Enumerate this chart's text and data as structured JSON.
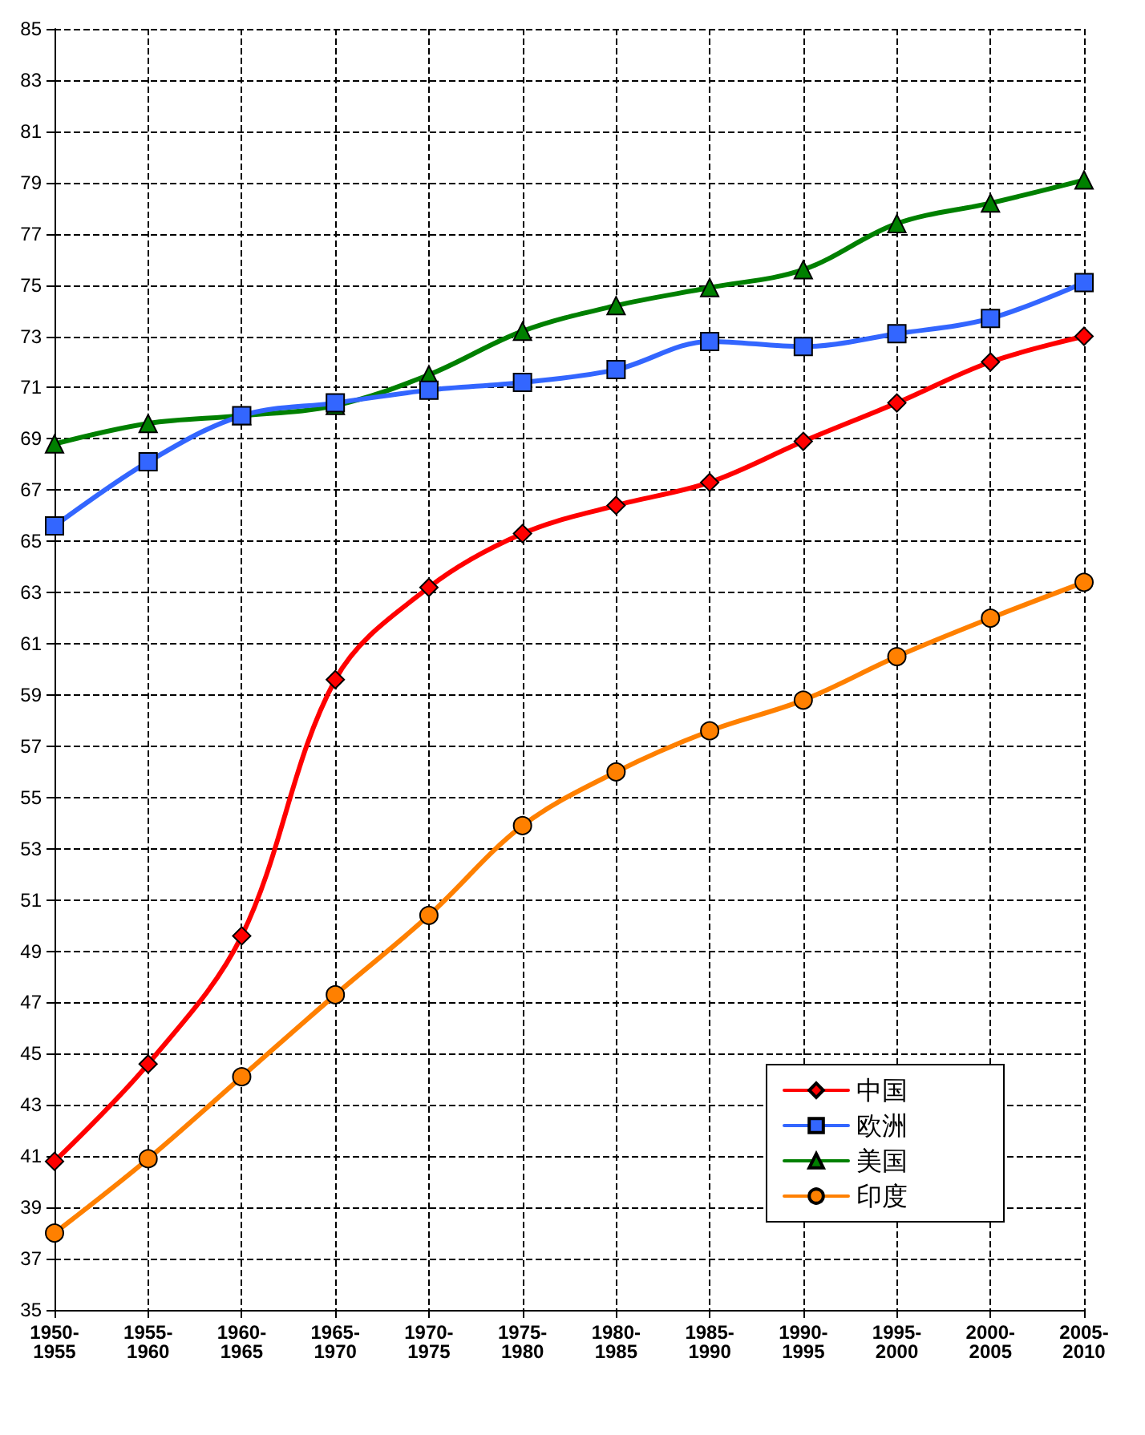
{
  "chart_data": {
    "type": "line",
    "categories": [
      "1950-1955",
      "1955-1960",
      "1960-1965",
      "1965-1970",
      "1970-1975",
      "1975-1980",
      "1980-1985",
      "1985-1990",
      "1990-1995",
      "1995-2000",
      "2000-2005",
      "2005-2010"
    ],
    "series": [
      {
        "name": "中国",
        "color": "#ff0000",
        "marker": "diamond",
        "values": [
          40.8,
          44.6,
          49.6,
          59.6,
          63.2,
          65.3,
          66.4,
          67.3,
          68.9,
          70.4,
          72.0,
          73.0
        ]
      },
      {
        "name": "欧洲",
        "color": "#3366ff",
        "marker": "square",
        "values": [
          65.6,
          68.1,
          69.9,
          70.4,
          70.9,
          71.2,
          71.7,
          72.8,
          72.6,
          73.1,
          73.7,
          75.1
        ]
      },
      {
        "name": "美国",
        "color": "#008000",
        "marker": "triangle",
        "values": [
          68.8,
          69.6,
          69.9,
          70.3,
          71.5,
          73.2,
          74.2,
          74.9,
          75.6,
          77.4,
          78.2,
          79.1
        ]
      },
      {
        "name": "印度",
        "color": "#ff8000",
        "marker": "circle",
        "values": [
          38.0,
          40.9,
          44.1,
          47.3,
          50.4,
          53.9,
          56.0,
          57.6,
          58.8,
          60.5,
          62.0,
          63.4
        ]
      }
    ],
    "ylim": [
      35,
      85
    ],
    "yticks": [
      35,
      37,
      39,
      41,
      43,
      45,
      47,
      49,
      51,
      53,
      55,
      57,
      59,
      61,
      63,
      65,
      67,
      69,
      71,
      73,
      75,
      77,
      79,
      81,
      83,
      85
    ],
    "grid": true,
    "legend": "bottom right",
    "line_style": "solid"
  }
}
